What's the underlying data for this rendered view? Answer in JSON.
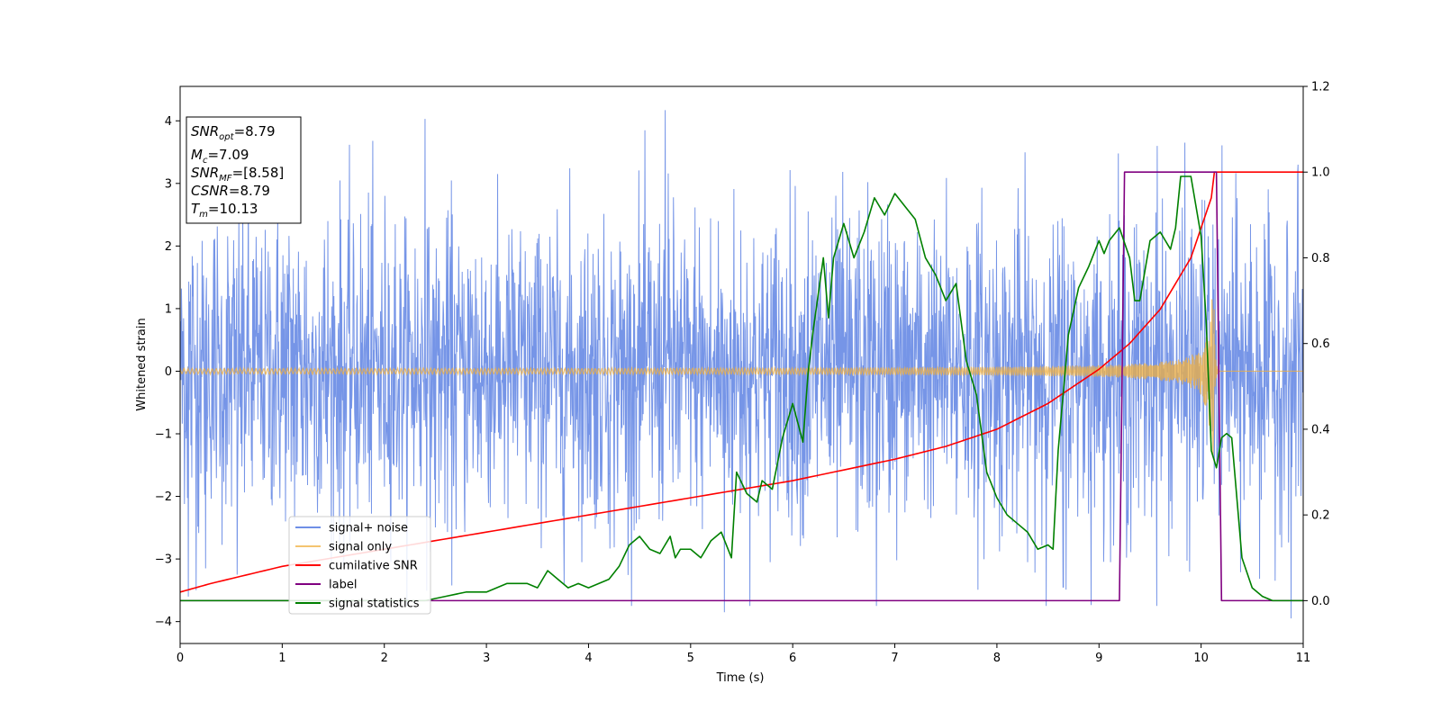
{
  "chart_data": {
    "type": "line",
    "title": "",
    "xlabel": "Time (s)",
    "ylabel": "Whitened strain",
    "y2label": "",
    "xlim": [
      0,
      11
    ],
    "ylim": [
      -4.35,
      4.55
    ],
    "y2lim": [
      -0.1,
      1.2
    ],
    "grid": false,
    "legend_placement": "lower-left",
    "xticks": [
      "0",
      "1",
      "2",
      "3",
      "4",
      "5",
      "6",
      "7",
      "8",
      "9",
      "10",
      "11"
    ],
    "xtick_values": [
      0,
      1,
      2,
      3,
      4,
      5,
      6,
      7,
      8,
      9,
      10,
      11
    ],
    "yticks": [
      "4",
      "3",
      "2",
      "1",
      "0",
      "−1",
      "−2",
      "−3",
      "−4"
    ],
    "ytick_values": [
      4,
      3,
      2,
      1,
      0,
      -1,
      -2,
      -3,
      -4
    ],
    "y2ticks": [
      "1.2",
      "1.0",
      "0.8",
      "0.6",
      "0.4",
      "0.2",
      "0.0"
    ],
    "y2tick_values": [
      1.2,
      1.0,
      0.8,
      0.6,
      0.4,
      0.2,
      0.0
    ],
    "annotation": {
      "lines": [
        {
          "sym": "SNR",
          "sub": "opt",
          "value": "=8.79"
        },
        {
          "sym": "M",
          "sub": "c",
          "value": "=7.09"
        },
        {
          "sym": "SNR",
          "sub": "MF",
          "value": "=[8.58]"
        },
        {
          "sym": "CSNR",
          "sub": "",
          "value": "=8.79"
        },
        {
          "sym": "T",
          "sub": "m",
          "value": "=10.13"
        }
      ]
    },
    "series": [
      {
        "name": "signal+ noise",
        "axis": "left",
        "color": "#6f8fe6",
        "style": "noise",
        "noise": {
          "x_start": 0,
          "x_end": 11,
          "core_amplitude": 1.2,
          "peak_max": 4.17,
          "peak_min": -3.95
        },
        "outliers": [
          [
            2.4,
            4.03
          ],
          [
            4.75,
            4.17
          ],
          [
            9.57,
            3.6
          ],
          [
            10.95,
            3.3
          ],
          [
            5.33,
            -3.85
          ],
          [
            6.82,
            -3.75
          ],
          [
            10.88,
            -3.95
          ],
          [
            8.65,
            -3.45
          ],
          [
            0.08,
            -3.6
          ],
          [
            0.25,
            -3.15
          ],
          [
            0.56,
            -3.25
          ]
        ]
      },
      {
        "name": "signal only",
        "axis": "left",
        "color": "#f0b040",
        "style": "chirp",
        "chirp": {
          "x_start": 0,
          "merger": 10.13,
          "amp_start": 0.03,
          "amp_mid": 0.25,
          "amp_merger": 1.75
        }
      },
      {
        "name": "cumilative SNR",
        "axis": "right",
        "color": "#ff0000",
        "x": [
          0,
          0.3,
          1,
          2,
          3,
          4,
          5,
          6,
          7,
          7.5,
          8,
          8.5,
          9,
          9.3,
          9.6,
          9.9,
          10.1,
          10.13,
          11
        ],
        "y": [
          0.02,
          0.04,
          0.08,
          0.12,
          0.16,
          0.2,
          0.24,
          0.28,
          0.33,
          0.36,
          0.4,
          0.46,
          0.54,
          0.6,
          0.68,
          0.8,
          0.94,
          1.0,
          1.0
        ]
      },
      {
        "name": "label",
        "axis": "right",
        "color": "#800080",
        "x": [
          0,
          9.2,
          9.25,
          10.15,
          10.2,
          11
        ],
        "y": [
          0.0,
          0.0,
          1.0,
          1.0,
          0.0,
          0.0
        ]
      },
      {
        "name": "signal statistics",
        "axis": "right",
        "color": "#008000",
        "x": [
          0,
          0.5,
          1,
          1.5,
          2,
          2.4,
          2.6,
          2.8,
          3.0,
          3.1,
          3.2,
          3.3,
          3.4,
          3.5,
          3.6,
          3.7,
          3.8,
          3.9,
          4.0,
          4.1,
          4.2,
          4.3,
          4.4,
          4.5,
          4.6,
          4.7,
          4.8,
          4.85,
          4.9,
          5.0,
          5.1,
          5.2,
          5.3,
          5.4,
          5.45,
          5.55,
          5.65,
          5.7,
          5.8,
          5.9,
          6.0,
          6.1,
          6.15,
          6.2,
          6.3,
          6.35,
          6.4,
          6.5,
          6.6,
          6.7,
          6.8,
          6.9,
          7.0,
          7.1,
          7.2,
          7.3,
          7.4,
          7.5,
          7.6,
          7.7,
          7.8,
          7.9,
          8.0,
          8.1,
          8.2,
          8.3,
          8.4,
          8.5,
          8.55,
          8.6,
          8.7,
          8.8,
          8.9,
          9.0,
          9.05,
          9.1,
          9.2,
          9.3,
          9.35,
          9.4,
          9.5,
          9.6,
          9.7,
          9.75,
          9.8,
          9.9,
          10.0,
          10.05,
          10.1,
          10.15,
          10.2,
          10.25,
          10.3,
          10.4,
          10.5,
          10.6,
          10.7,
          11
        ],
        "y": [
          0.0,
          0.0,
          0.0,
          0.0,
          0.0,
          0.0,
          0.01,
          0.02,
          0.02,
          0.03,
          0.04,
          0.04,
          0.04,
          0.03,
          0.07,
          0.05,
          0.03,
          0.04,
          0.03,
          0.04,
          0.05,
          0.08,
          0.13,
          0.15,
          0.12,
          0.11,
          0.15,
          0.1,
          0.12,
          0.12,
          0.1,
          0.14,
          0.16,
          0.1,
          0.3,
          0.25,
          0.23,
          0.28,
          0.26,
          0.38,
          0.46,
          0.37,
          0.53,
          0.63,
          0.8,
          0.66,
          0.8,
          0.88,
          0.8,
          0.86,
          0.94,
          0.9,
          0.95,
          0.92,
          0.89,
          0.8,
          0.76,
          0.7,
          0.74,
          0.56,
          0.48,
          0.3,
          0.24,
          0.2,
          0.18,
          0.16,
          0.12,
          0.13,
          0.12,
          0.35,
          0.62,
          0.73,
          0.78,
          0.84,
          0.81,
          0.84,
          0.87,
          0.8,
          0.7,
          0.7,
          0.84,
          0.86,
          0.82,
          0.87,
          0.99,
          0.99,
          0.85,
          0.65,
          0.35,
          0.31,
          0.38,
          0.39,
          0.38,
          0.1,
          0.03,
          0.01,
          0.0,
          0.0
        ]
      }
    ]
  }
}
